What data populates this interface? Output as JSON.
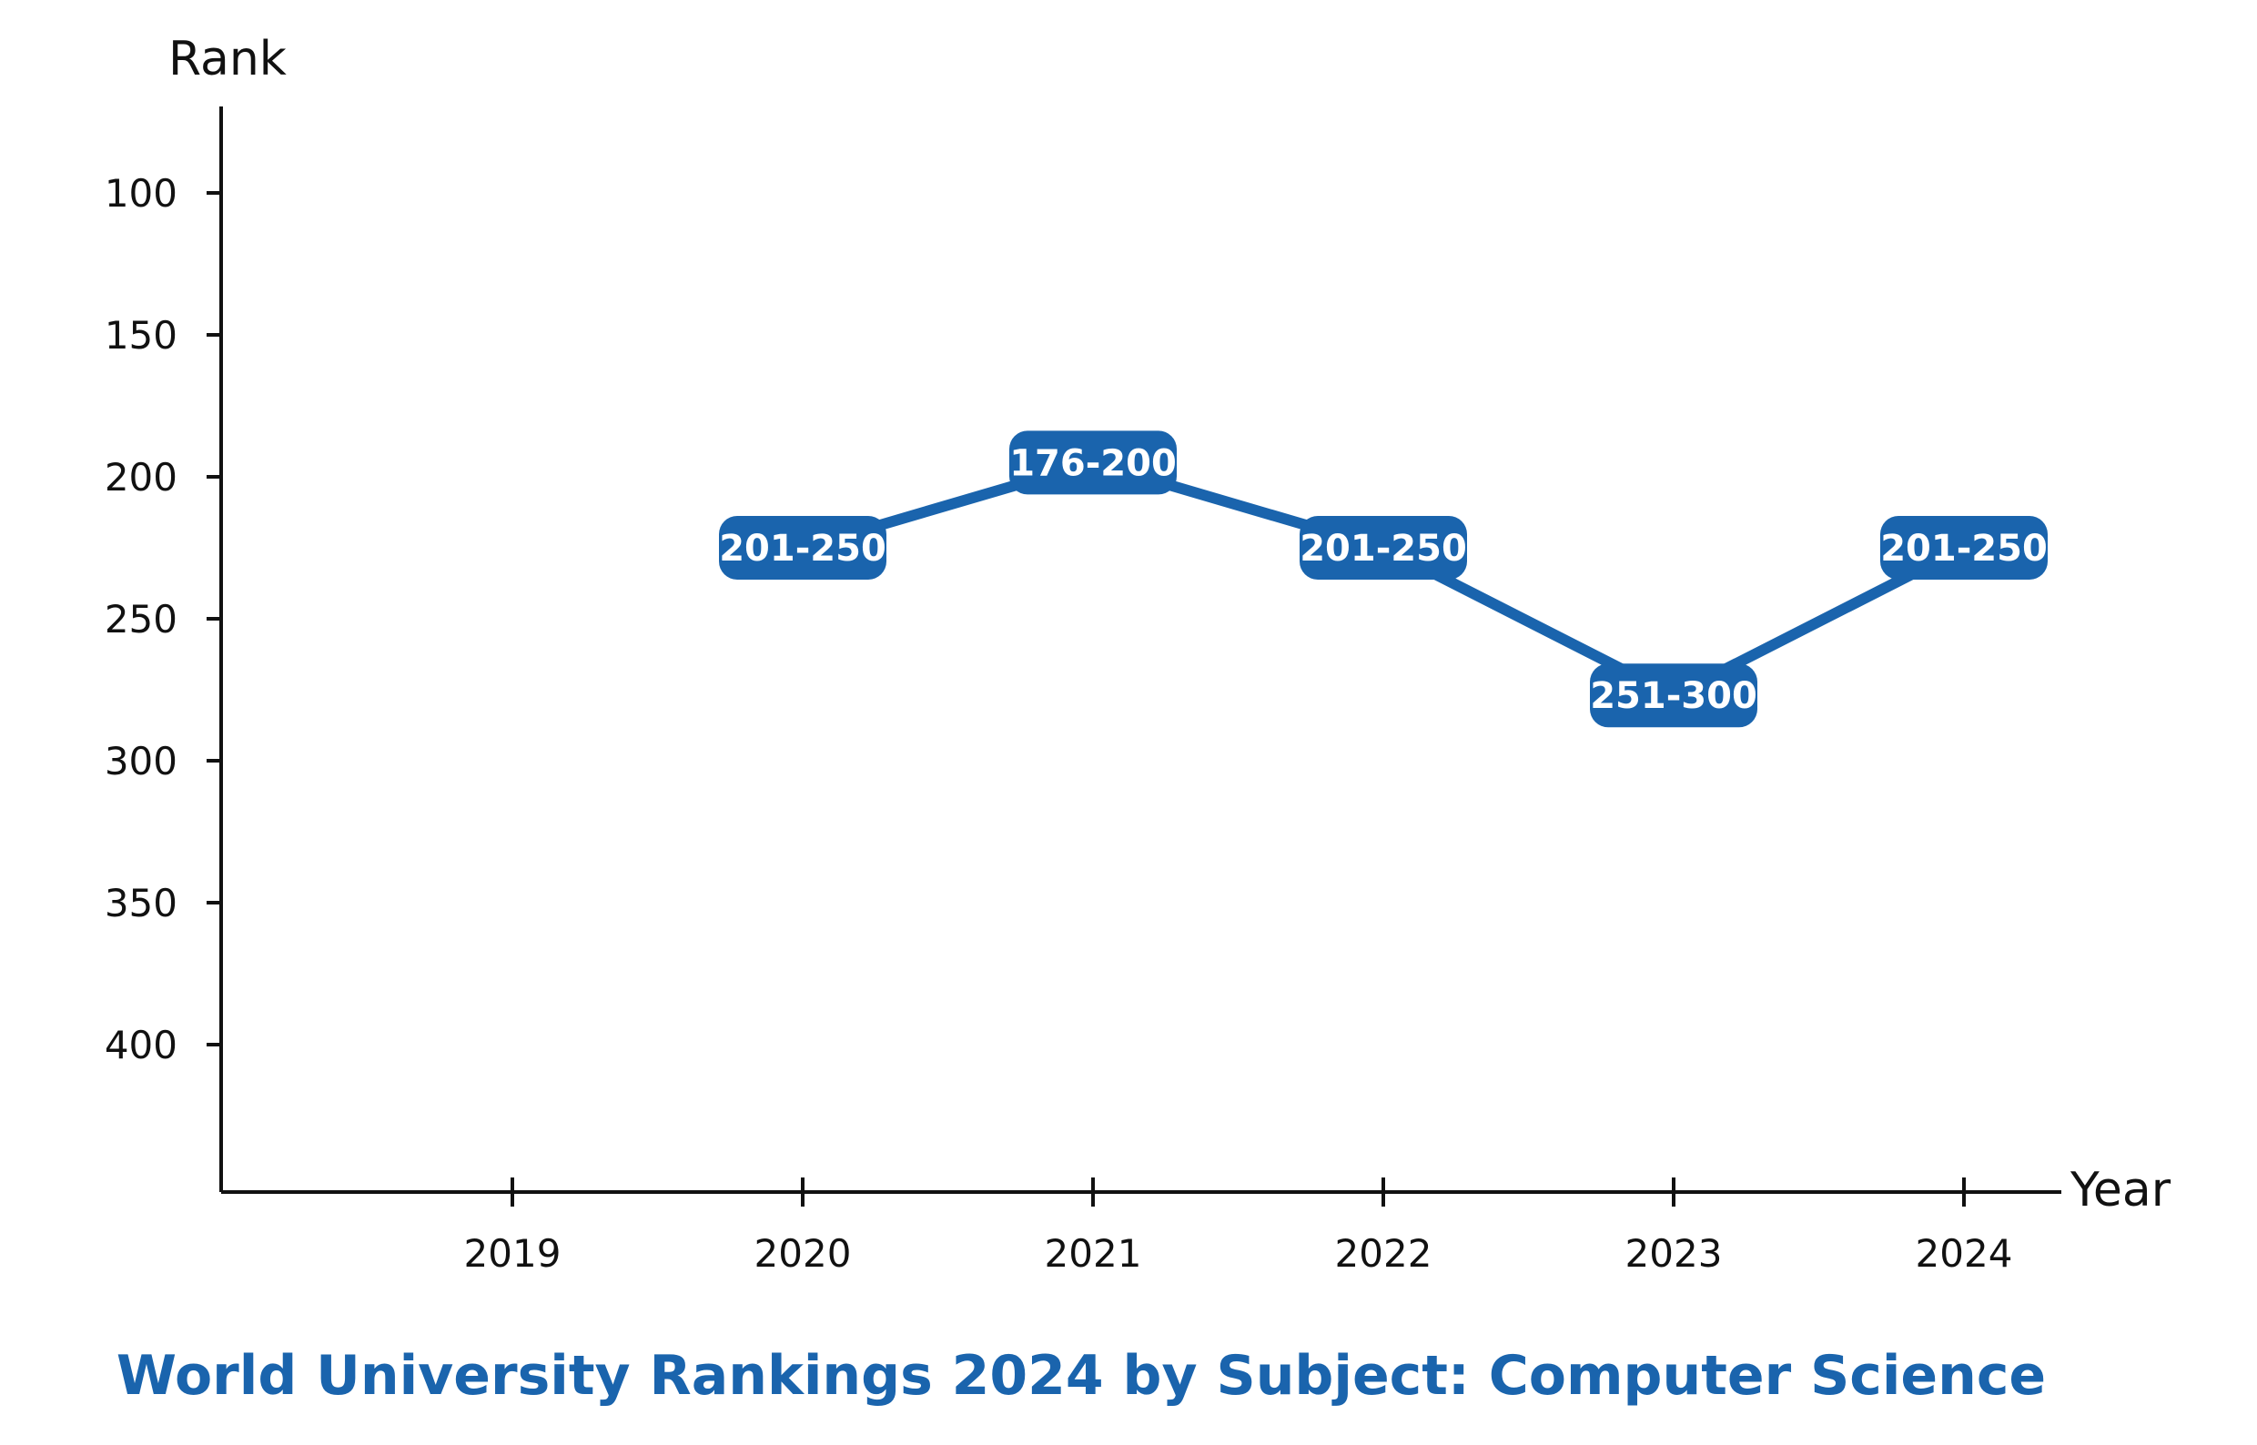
{
  "chart_data": {
    "type": "line",
    "title": "World University Rankings 2024 by Subject: Computer Science",
    "xlabel": "Year",
    "ylabel": "Rank",
    "categories": [
      "2019",
      "2020",
      "2021",
      "2022",
      "2023",
      "2024"
    ],
    "ylim": [
      70,
      450
    ],
    "y_inverted": true,
    "yticks": [
      100,
      150,
      200,
      250,
      300,
      350,
      400
    ],
    "series": [
      {
        "points": [
          {
            "x": "2020",
            "y": 225,
            "label": "201-250"
          },
          {
            "x": "2021",
            "y": 195,
            "label": "176-200"
          },
          {
            "x": "2022",
            "y": 225,
            "label": "201-250"
          },
          {
            "x": "2023",
            "y": 277,
            "label": "251-300"
          },
          {
            "x": "2024",
            "y": 225,
            "label": "201-250"
          }
        ]
      }
    ],
    "grid": false,
    "colors": {
      "series": "#1a64ad",
      "title": "#1a64ad",
      "axis": "#111111"
    }
  }
}
